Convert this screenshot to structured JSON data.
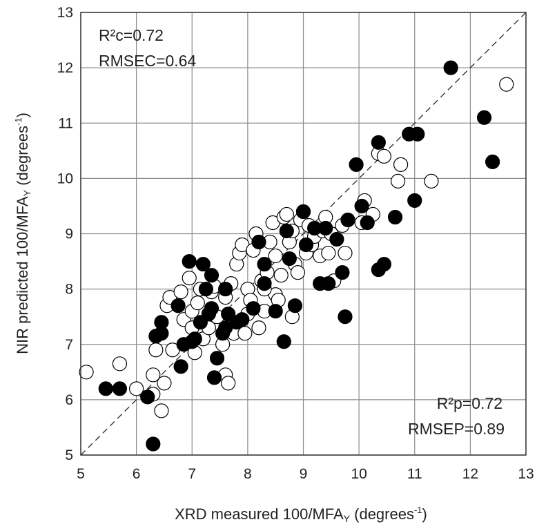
{
  "chart_data": {
    "type": "scatter",
    "xlabel": "XRD measured 100/MFA",
    "xlabel_sub": "Y",
    "xlabel_unit_pre": " (degrees",
    "xlabel_unit_sup": "-1",
    "xlabel_unit_post": ")",
    "ylabel": "NIR predicted 100/MFA",
    "ylabel_sub": "Y",
    "ylabel_unit_pre": " (degrees",
    "ylabel_unit_sup": "-1",
    "ylabel_unit_post": ")",
    "xlim": [
      5,
      13
    ],
    "ylim": [
      5,
      13
    ],
    "xticks": [
      "5",
      "6",
      "7",
      "8",
      "9",
      "10",
      "11",
      "12",
      "13"
    ],
    "yticks": [
      "5",
      "6",
      "7",
      "8",
      "9",
      "10",
      "11",
      "12",
      "13"
    ],
    "grid": true,
    "reference_line": {
      "style": "dashed",
      "from": [
        5,
        5
      ],
      "to": [
        13,
        13
      ]
    },
    "annotations": {
      "calibration": [
        "R²c=0.72",
        "RMSEC=0.64"
      ],
      "prediction": [
        "R²p=0.72",
        "RMSEP=0.89"
      ]
    },
    "series": [
      {
        "marker": "open-circle",
        "color": "#ffffff",
        "points": [
          [
            5.1,
            6.5
          ],
          [
            5.7,
            6.65
          ],
          [
            6.0,
            6.2
          ],
          [
            6.3,
            6.45
          ],
          [
            6.35,
            6.9
          ],
          [
            6.3,
            6.1
          ],
          [
            6.45,
            5.8
          ],
          [
            6.5,
            6.3
          ],
          [
            6.55,
            7.7
          ],
          [
            6.6,
            7.85
          ],
          [
            6.65,
            6.9
          ],
          [
            6.8,
            7.95
          ],
          [
            6.85,
            7.45
          ],
          [
            6.95,
            8.2
          ],
          [
            7.0,
            7.6
          ],
          [
            7.0,
            7.3
          ],
          [
            7.05,
            6.85
          ],
          [
            7.1,
            7.75
          ],
          [
            7.15,
            8.0
          ],
          [
            7.2,
            7.1
          ],
          [
            7.3,
            7.3
          ],
          [
            7.35,
            7.95
          ],
          [
            7.4,
            8.05
          ],
          [
            7.45,
            7.5
          ],
          [
            7.55,
            7.0
          ],
          [
            7.6,
            6.45
          ],
          [
            7.65,
            6.3
          ],
          [
            7.6,
            7.85
          ],
          [
            7.7,
            8.1
          ],
          [
            7.75,
            7.2
          ],
          [
            7.8,
            8.45
          ],
          [
            7.85,
            8.65
          ],
          [
            7.9,
            8.8
          ],
          [
            7.95,
            7.2
          ],
          [
            8.0,
            7.55
          ],
          [
            8.0,
            8.0
          ],
          [
            8.05,
            7.8
          ],
          [
            8.1,
            8.7
          ],
          [
            8.15,
            9.0
          ],
          [
            8.2,
            7.3
          ],
          [
            8.25,
            8.15
          ],
          [
            8.3,
            7.6
          ],
          [
            8.35,
            8.3
          ],
          [
            8.4,
            8.85
          ],
          [
            8.45,
            9.2
          ],
          [
            8.5,
            7.9
          ],
          [
            8.5,
            8.6
          ],
          [
            8.55,
            7.8
          ],
          [
            8.6,
            8.25
          ],
          [
            8.65,
            9.3
          ],
          [
            8.7,
            9.35
          ],
          [
            8.75,
            8.85
          ],
          [
            8.8,
            9.05
          ],
          [
            8.8,
            7.5
          ],
          [
            8.85,
            8.45
          ],
          [
            8.9,
            8.3
          ],
          [
            8.95,
            9.25
          ],
          [
            9.0,
            9.4
          ],
          [
            9.05,
            8.65
          ],
          [
            9.1,
            9.15
          ],
          [
            9.15,
            8.8
          ],
          [
            9.2,
            8.95
          ],
          [
            9.3,
            8.6
          ],
          [
            9.35,
            9.05
          ],
          [
            9.4,
            9.3
          ],
          [
            9.45,
            8.65
          ],
          [
            9.5,
            9.0
          ],
          [
            9.55,
            8.15
          ],
          [
            9.7,
            9.15
          ],
          [
            9.75,
            8.65
          ],
          [
            10.05,
            9.2
          ],
          [
            10.1,
            9.6
          ],
          [
            10.25,
            9.35
          ],
          [
            10.35,
            10.45
          ],
          [
            10.45,
            10.4
          ],
          [
            10.7,
            9.95
          ],
          [
            10.75,
            10.25
          ],
          [
            11.3,
            9.95
          ],
          [
            12.65,
            11.7
          ],
          [
            8.3,
            8.0
          ]
        ]
      },
      {
        "marker": "filled-circle",
        "color": "#000000",
        "points": [
          [
            5.45,
            6.2
          ],
          [
            5.7,
            6.2
          ],
          [
            6.2,
            6.05
          ],
          [
            6.3,
            5.2
          ],
          [
            6.35,
            7.15
          ],
          [
            6.45,
            7.2
          ],
          [
            6.45,
            7.4
          ],
          [
            6.75,
            7.7
          ],
          [
            6.8,
            6.6
          ],
          [
            6.85,
            7.0
          ],
          [
            6.95,
            8.5
          ],
          [
            7.0,
            7.05
          ],
          [
            7.05,
            7.1
          ],
          [
            7.15,
            7.4
          ],
          [
            7.2,
            8.45
          ],
          [
            7.25,
            8.0
          ],
          [
            7.3,
            7.55
          ],
          [
            7.35,
            7.65
          ],
          [
            7.35,
            8.25
          ],
          [
            7.4,
            6.4
          ],
          [
            7.45,
            6.75
          ],
          [
            7.55,
            7.2
          ],
          [
            7.6,
            7.3
          ],
          [
            7.6,
            8.0
          ],
          [
            7.65,
            7.55
          ],
          [
            7.8,
            7.4
          ],
          [
            7.9,
            7.45
          ],
          [
            8.1,
            7.65
          ],
          [
            8.2,
            8.85
          ],
          [
            8.3,
            8.1
          ],
          [
            8.3,
            8.45
          ],
          [
            8.5,
            7.6
          ],
          [
            8.65,
            7.05
          ],
          [
            8.7,
            9.05
          ],
          [
            8.75,
            8.55
          ],
          [
            8.85,
            7.7
          ],
          [
            9.0,
            9.4
          ],
          [
            9.05,
            8.8
          ],
          [
            9.2,
            9.1
          ],
          [
            9.3,
            8.1
          ],
          [
            9.4,
            9.1
          ],
          [
            9.45,
            8.1
          ],
          [
            9.6,
            8.9
          ],
          [
            9.7,
            8.3
          ],
          [
            9.75,
            7.5
          ],
          [
            9.8,
            9.25
          ],
          [
            9.95,
            10.25
          ],
          [
            10.05,
            9.5
          ],
          [
            10.15,
            9.2
          ],
          [
            10.35,
            10.65
          ],
          [
            10.35,
            8.35
          ],
          [
            10.45,
            8.45
          ],
          [
            10.65,
            9.3
          ],
          [
            10.9,
            10.8
          ],
          [
            11.0,
            9.6
          ],
          [
            11.05,
            10.8
          ],
          [
            11.65,
            12.0
          ],
          [
            12.25,
            11.1
          ],
          [
            12.4,
            10.3
          ]
        ]
      }
    ]
  }
}
